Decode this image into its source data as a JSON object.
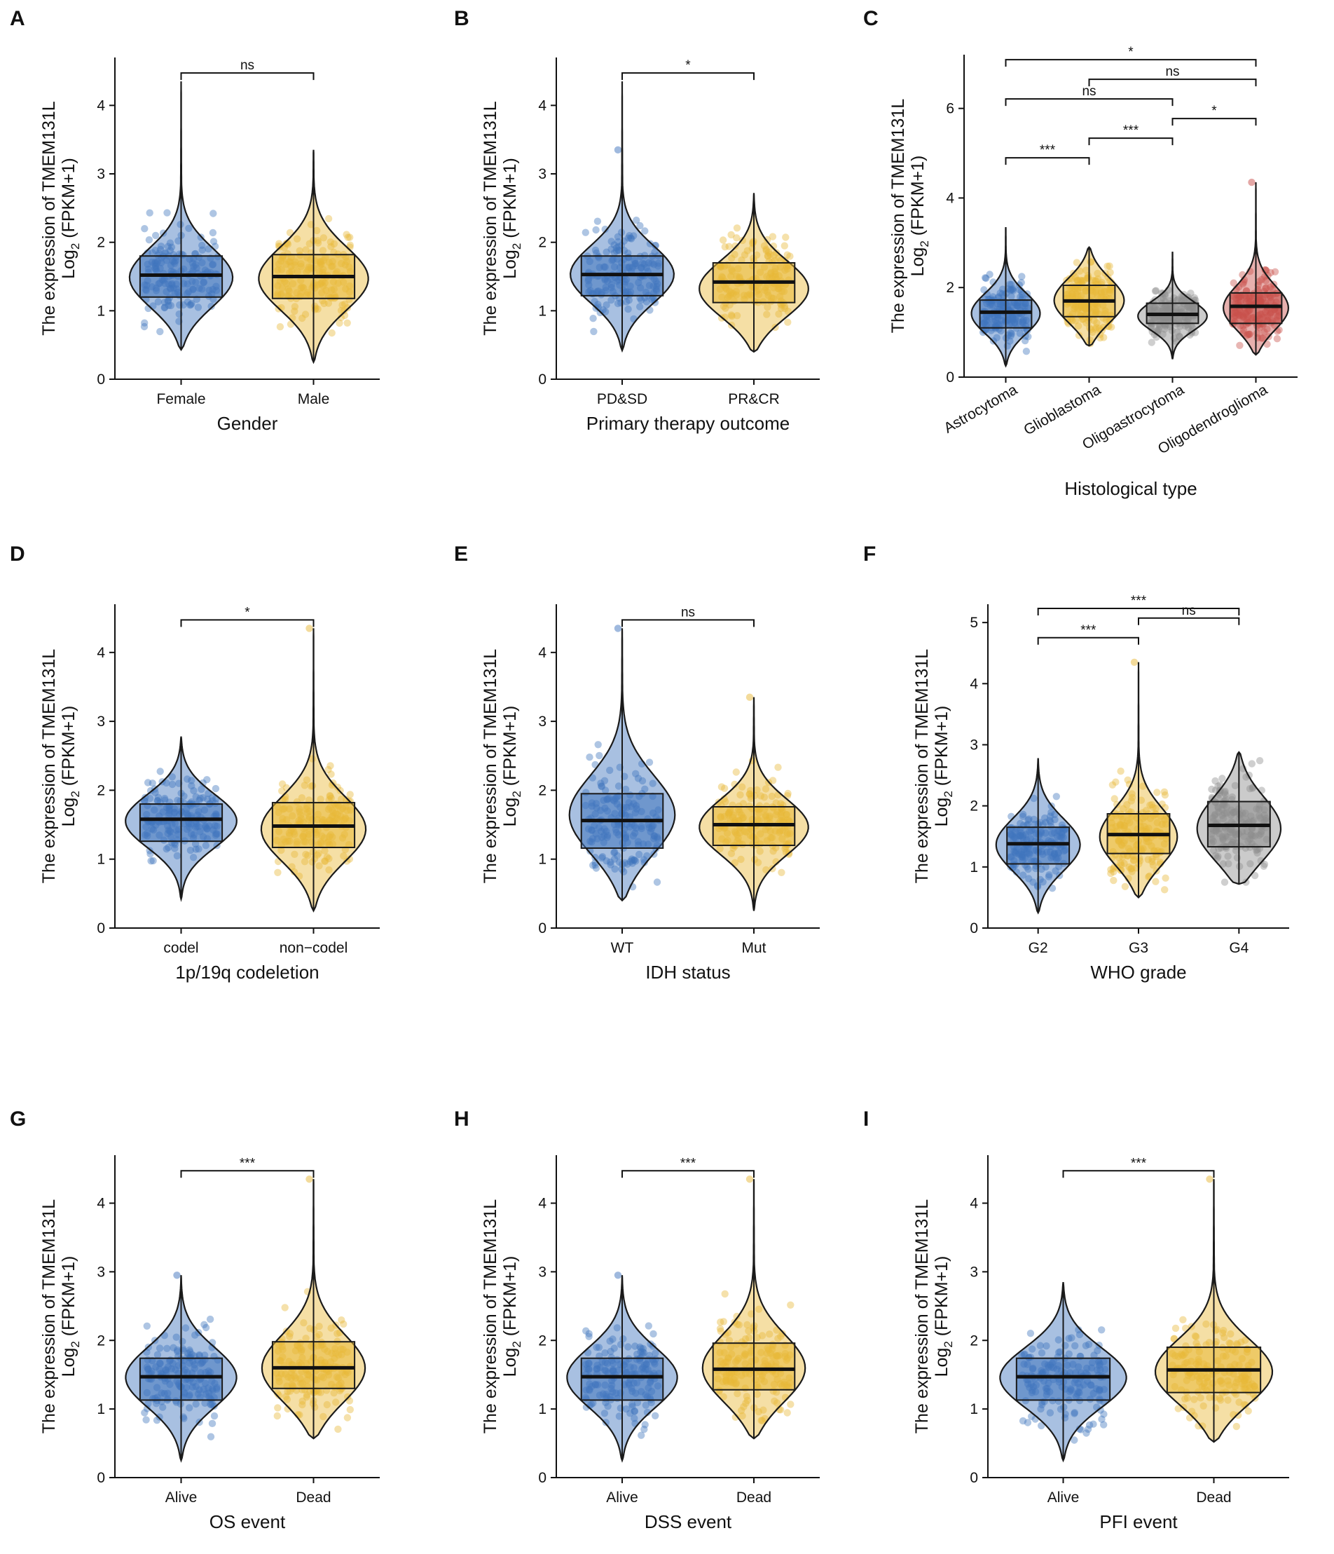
{
  "figure": {
    "y_axis_label_line1": "The expression of TMEM131L",
    "y_axis_label_line2_prefix": "Log",
    "y_axis_label_line2_sub": "2",
    "y_axis_label_line2_suffix": " (FPKM+1)"
  },
  "colors": {
    "blue": "#3f74bd",
    "yellow": "#e8b837",
    "gray": "#8c8c8c",
    "red": "#c9504b"
  },
  "chart_data": [
    {
      "panel": "A",
      "type": "violin-box",
      "xlabel": "Gender",
      "ylim": [
        0,
        4.7
      ],
      "yticks": [
        0,
        1,
        2,
        3,
        4
      ],
      "groups": [
        {
          "name": "Female",
          "color": "blue",
          "min": 0.43,
          "max": 4.35,
          "q1": 1.2,
          "median": 1.52,
          "q3": 1.8,
          "mode": 1.45,
          "jmin": 0.5,
          "jmax": 2.8
        },
        {
          "name": "Male",
          "color": "yellow",
          "min": 0.25,
          "max": 3.35,
          "q1": 1.18,
          "median": 1.5,
          "q3": 1.82,
          "mode": 1.45,
          "jmin": 0.3,
          "jmax": 2.85
        }
      ],
      "comparisons": [
        {
          "from": 0,
          "to": 1,
          "label": "ns"
        }
      ]
    },
    {
      "panel": "B",
      "type": "violin-box",
      "xlabel": "Primary therapy outcome",
      "ylim": [
        0,
        4.7
      ],
      "yticks": [
        0,
        1,
        2,
        3,
        4
      ],
      "groups": [
        {
          "name": "PD&SD",
          "color": "blue",
          "min": 0.42,
          "max": 4.35,
          "q1": 1.22,
          "median": 1.53,
          "q3": 1.8,
          "mode": 1.5,
          "jmin": 0.45,
          "jmax": 3.35
        },
        {
          "name": "PR&CR",
          "color": "yellow",
          "min": 0.4,
          "max": 2.72,
          "q1": 1.12,
          "median": 1.42,
          "q3": 1.7,
          "mode": 1.3,
          "jmin": 0.5,
          "jmax": 2.55
        }
      ],
      "comparisons": [
        {
          "from": 0,
          "to": 1,
          "label": "*"
        }
      ]
    },
    {
      "panel": "C",
      "type": "violin-box",
      "xlabel": "Histological type",
      "ylim": [
        0,
        7.2
      ],
      "yticks": [
        0,
        2,
        4,
        6
      ],
      "rotated_ticks": true,
      "groups": [
        {
          "name": "Astrocytoma",
          "color": "blue",
          "min": 0.25,
          "max": 3.35,
          "q1": 1.1,
          "median": 1.45,
          "q3": 1.72,
          "mode": 1.4,
          "jmin": 0.3,
          "jmax": 2.6
        },
        {
          "name": "Glioblastoma",
          "color": "yellow",
          "min": 0.7,
          "max": 2.9,
          "q1": 1.35,
          "median": 1.7,
          "q3": 2.05,
          "mode": 1.7,
          "jmin": 0.75,
          "jmax": 2.8
        },
        {
          "name": "Oligoastrocytoma",
          "color": "gray",
          "min": 0.4,
          "max": 2.8,
          "q1": 1.2,
          "median": 1.4,
          "q3": 1.65,
          "mode": 1.35,
          "jmin": 0.5,
          "jmax": 2.7
        },
        {
          "name": "Oligodendroglioma",
          "color": "red",
          "min": 0.5,
          "max": 4.35,
          "q1": 1.2,
          "median": 1.58,
          "q3": 1.88,
          "mode": 1.5,
          "jmin": 0.55,
          "jmax": 4.35
        }
      ],
      "comparisons": [
        {
          "from": 0,
          "to": 1,
          "label": "***"
        },
        {
          "from": 0,
          "to": 2,
          "label": "ns"
        },
        {
          "from": 0,
          "to": 3,
          "label": "*"
        },
        {
          "from": 1,
          "to": 2,
          "label": "***"
        },
        {
          "from": 1,
          "to": 3,
          "label": "ns"
        },
        {
          "from": 2,
          "to": 3,
          "label": "*"
        }
      ]
    },
    {
      "panel": "D",
      "type": "violin-box",
      "xlabel": "1p/19q codeletion",
      "ylim": [
        0,
        4.7
      ],
      "yticks": [
        0,
        1,
        2,
        3,
        4
      ],
      "groups": [
        {
          "name": "codel",
          "color": "blue",
          "min": 0.42,
          "max": 2.78,
          "q1": 1.26,
          "median": 1.58,
          "q3": 1.8,
          "mode": 1.55,
          "jmin": 0.45,
          "jmax": 2.75
        },
        {
          "name": "non−codel",
          "color": "yellow",
          "min": 0.25,
          "max": 4.35,
          "q1": 1.17,
          "median": 1.48,
          "q3": 1.82,
          "mode": 1.4,
          "jmin": 0.3,
          "jmax": 4.35
        }
      ],
      "comparisons": [
        {
          "from": 0,
          "to": 1,
          "label": "*"
        }
      ]
    },
    {
      "panel": "E",
      "type": "violin-box",
      "xlabel": "IDH status",
      "ylim": [
        0,
        4.7
      ],
      "yticks": [
        0,
        1,
        2,
        3,
        4
      ],
      "groups": [
        {
          "name": "WT",
          "color": "blue",
          "min": 0.4,
          "max": 4.35,
          "q1": 1.16,
          "median": 1.56,
          "q3": 1.95,
          "mode": 1.6,
          "jmin": 0.42,
          "jmax": 4.35
        },
        {
          "name": "Mut",
          "color": "yellow",
          "min": 0.25,
          "max": 3.35,
          "q1": 1.2,
          "median": 1.5,
          "q3": 1.76,
          "mode": 1.45,
          "jmin": 0.3,
          "jmax": 3.35
        }
      ],
      "comparisons": [
        {
          "from": 0,
          "to": 1,
          "label": "ns"
        }
      ]
    },
    {
      "panel": "F",
      "type": "violin-box",
      "xlabel": "WHO grade",
      "ylim": [
        0,
        5.3
      ],
      "yticks": [
        0,
        1,
        2,
        3,
        4,
        5
      ],
      "groups": [
        {
          "name": "G2",
          "color": "blue",
          "min": 0.25,
          "max": 2.78,
          "q1": 1.05,
          "median": 1.38,
          "q3": 1.65,
          "mode": 1.35,
          "jmin": 0.3,
          "jmax": 2.75
        },
        {
          "name": "G3",
          "color": "yellow",
          "min": 0.5,
          "max": 4.35,
          "q1": 1.22,
          "median": 1.53,
          "q3": 1.87,
          "mode": 1.45,
          "jmin": 0.55,
          "jmax": 4.35
        },
        {
          "name": "G4",
          "color": "gray",
          "min": 0.72,
          "max": 2.88,
          "q1": 1.33,
          "median": 1.68,
          "q3": 2.07,
          "mode": 1.6,
          "jmin": 0.75,
          "jmax": 2.85
        }
      ],
      "comparisons": [
        {
          "from": 0,
          "to": 1,
          "label": "***"
        },
        {
          "from": 0,
          "to": 2,
          "label": "***"
        },
        {
          "from": 1,
          "to": 2,
          "label": "ns"
        }
      ]
    },
    {
      "panel": "G",
      "type": "violin-box",
      "xlabel": "OS event",
      "ylim": [
        0,
        4.7
      ],
      "yticks": [
        0,
        1,
        2,
        3,
        4
      ],
      "groups": [
        {
          "name": "Alive",
          "color": "blue",
          "min": 0.25,
          "max": 2.95,
          "q1": 1.13,
          "median": 1.47,
          "q3": 1.74,
          "mode": 1.45,
          "jmin": 0.3,
          "jmax": 2.95
        },
        {
          "name": "Dead",
          "color": "yellow",
          "min": 0.57,
          "max": 4.35,
          "q1": 1.3,
          "median": 1.6,
          "q3": 1.98,
          "mode": 1.55,
          "jmin": 0.6,
          "jmax": 4.35
        }
      ],
      "comparisons": [
        {
          "from": 0,
          "to": 1,
          "label": "***"
        }
      ]
    },
    {
      "panel": "H",
      "type": "violin-box",
      "xlabel": "DSS event",
      "ylim": [
        0,
        4.7
      ],
      "yticks": [
        0,
        1,
        2,
        3,
        4
      ],
      "groups": [
        {
          "name": "Alive",
          "color": "blue",
          "min": 0.25,
          "max": 2.95,
          "q1": 1.13,
          "median": 1.47,
          "q3": 1.74,
          "mode": 1.45,
          "jmin": 0.3,
          "jmax": 2.95
        },
        {
          "name": "Dead",
          "color": "yellow",
          "min": 0.57,
          "max": 4.35,
          "q1": 1.28,
          "median": 1.58,
          "q3": 1.96,
          "mode": 1.55,
          "jmin": 0.6,
          "jmax": 4.35
        }
      ],
      "comparisons": [
        {
          "from": 0,
          "to": 1,
          "label": "***"
        }
      ]
    },
    {
      "panel": "I",
      "type": "violin-box",
      "xlabel": "PFI event",
      "ylim": [
        0,
        4.7
      ],
      "yticks": [
        0,
        1,
        2,
        3,
        4
      ],
      "groups": [
        {
          "name": "Alive",
          "color": "blue",
          "min": 0.25,
          "max": 2.85,
          "q1": 1.13,
          "median": 1.47,
          "q3": 1.74,
          "mode": 1.45,
          "jmin": 0.28,
          "jmax": 2.85
        },
        {
          "name": "Dead",
          "color": "yellow",
          "min": 0.52,
          "max": 4.35,
          "q1": 1.24,
          "median": 1.57,
          "q3": 1.9,
          "mode": 1.5,
          "jmin": 0.55,
          "jmax": 4.35
        }
      ],
      "comparisons": [
        {
          "from": 0,
          "to": 1,
          "label": "***"
        }
      ]
    }
  ]
}
